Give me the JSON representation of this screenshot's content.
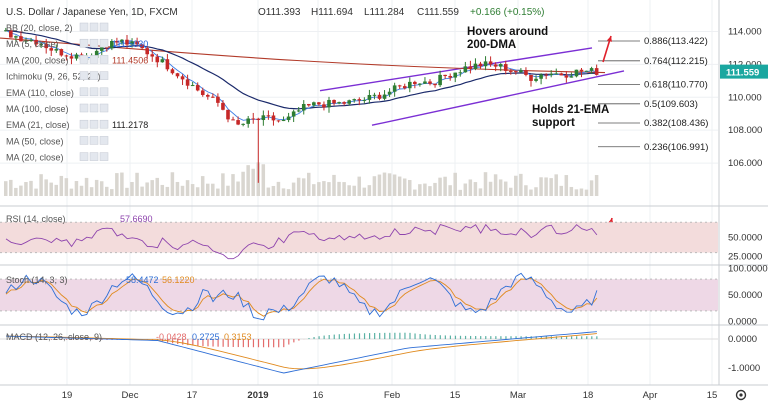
{
  "header": {
    "symbol": "U.S. Dollar / Japanese Yen, 1D, FXCM",
    "ohlc": [
      "O111.393",
      "H111.694",
      "L111.284",
      "C111.559"
    ],
    "change": "+0.166 (+0.15%)"
  },
  "indicators": [
    {
      "label": "BB (20, close, 2)",
      "value": ""
    },
    {
      "label": "MA (5, close)",
      "value": "111.5030",
      "color": "#1e5dd8"
    },
    {
      "label": "MA (200, close)",
      "value": "111.4506",
      "color": "#b23b2a"
    },
    {
      "label": "Ichimoku (9, 26, 52, 26)",
      "value": ""
    },
    {
      "label": "EMA (110, close)",
      "value": ""
    },
    {
      "label": "MA (100, close)",
      "value": ""
    },
    {
      "label": "EMA (21, close)",
      "value": "111.2178",
      "color": "#222"
    },
    {
      "label": "MA (50, close)",
      "value": ""
    },
    {
      "label": "MA (20, close)",
      "value": ""
    }
  ],
  "main_axis": {
    "ticks": [
      "114.000",
      "112.000",
      "110.000",
      "108.000",
      "106.000"
    ],
    "last_price": "111.559",
    "price_badge_color": "#1aa7a0"
  },
  "fib_levels": [
    {
      "label": "0.886(113.422)",
      "price": 113.422
    },
    {
      "label": "0.764(112.215)",
      "price": 112.215
    },
    {
      "label": "0.618(110.770)",
      "price": 110.77
    },
    {
      "label": "0.5(109.603)",
      "price": 109.603
    },
    {
      "label": "0.382(108.436)",
      "price": 108.436
    },
    {
      "label": "0.236(106.991)",
      "price": 106.991
    }
  ],
  "annotations": [
    {
      "id": "dma",
      "lines": [
        "Hovers around",
        "200-DMA"
      ]
    },
    {
      "id": "ema",
      "lines": [
        "Holds 21-EMA",
        "support"
      ]
    }
  ],
  "rsi": {
    "label": "RSI (14, close)",
    "value": "57.6690",
    "ticks": [
      "50.0000",
      "25.0000"
    ]
  },
  "stoch": {
    "label": "Stoch (14, 3, 3)",
    "value_k": "58.4472",
    "value_d": "56.1220",
    "ticks": [
      "100.0000",
      "50.0000",
      "0.0000"
    ]
  },
  "macd": {
    "label": "MACD (12, 26, close, 9)",
    "hist": "-0.0428",
    "macd": "0.2725",
    "signal": "0.3153",
    "ticks": [
      "0.0000",
      "-1.0000"
    ]
  },
  "time_axis": [
    "19",
    "Dec",
    "17",
    "2019",
    "16",
    "Feb",
    "15",
    "Mar",
    "18",
    "Apr",
    "15"
  ],
  "colors": {
    "up": "#2e7d32",
    "down": "#c62828",
    "channel": "#7b2fd4",
    "rsi_line": "#8e44ad",
    "stoch_k": "#2f6fd6",
    "stoch_d": "#e08a1e",
    "macd_line": "#2f6fd6",
    "signal_line": "#e08a1e",
    "arrow": "#e0202a"
  },
  "chart_data": {
    "type": "candlestick",
    "series": [
      {
        "name": "U.S. Dollar / Japanese Yen",
        "ohlc_close_samples": [
          113.9,
          113.6,
          113.4,
          112.8,
          112.6,
          112.4,
          113.2,
          113.4,
          113.1,
          112.5,
          111.8,
          111.0,
          110.2,
          109.6,
          108.2,
          108.6,
          108.7,
          108.5,
          109.3,
          109.6,
          109.6,
          109.7,
          109.9,
          110.2,
          110.6,
          111.0,
          110.9,
          111.4,
          111.8,
          112.0,
          111.9,
          111.6,
          111.2,
          111.5,
          111.4,
          111.6,
          111.56
        ]
      },
      {
        "name": "MA (200, close)",
        "value": 111.4506
      },
      {
        "name": "MA (5, close)",
        "value": 111.503
      },
      {
        "name": "EMA (21, close)",
        "value": 111.2178
      }
    ],
    "ylim": [
      104,
      115
    ]
  }
}
